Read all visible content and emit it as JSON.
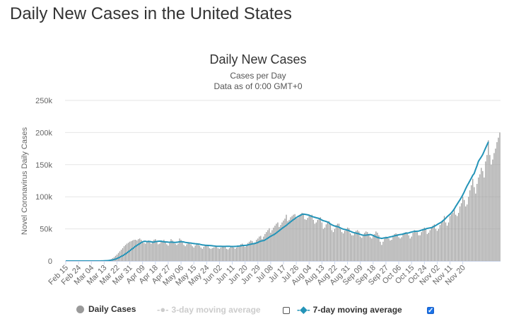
{
  "page": {
    "heading": "Daily New Cases in the United States"
  },
  "colors": {
    "bars": "#9a9a9a",
    "line": "#2494b8",
    "gridline": "#e6e6e6",
    "axis": "#ccd6eb"
  },
  "legend": {
    "daily": "Daily Cases",
    "avg3": "3-day moving average",
    "avg7": "7-day moving average",
    "avg3_checked": false,
    "avg7_checked": true
  },
  "chart_data": {
    "type": "bar",
    "title": "Daily New Cases",
    "subtitle": "Cases per Day",
    "subtitle2": "Data as of 0:00 GMT+0",
    "ylabel": "Novel Coronavirus Daily Cases",
    "xlabel": "",
    "ylim": [
      0,
      250000
    ],
    "yticks": [
      0,
      50000,
      100000,
      150000,
      200000,
      250000
    ],
    "ytick_labels": [
      "0",
      "50k",
      "100k",
      "150k",
      "200k",
      "250k"
    ],
    "x_start": "Feb 15",
    "x_end": "Nov 20",
    "xtick_labels": [
      "Feb 15",
      "Feb 24",
      "Mar 04",
      "Mar 13",
      "Mar 22",
      "Mar 31",
      "Apr 09",
      "Apr 18",
      "Apr 27",
      "May 06",
      "May 15",
      "May 24",
      "Jun 02",
      "Jun 11",
      "Jun 20",
      "Jun 29",
      "Jul 08",
      "Jul 17",
      "Jul 26",
      "Aug 04",
      "Aug 13",
      "Aug 22",
      "Aug 31",
      "Sep 09",
      "Sep 18",
      "Sep 27",
      "Oct 06",
      "Oct 15",
      "Oct 24",
      "Nov 02",
      "Nov 11",
      "Nov 20"
    ],
    "xtick_every": 9,
    "series": [
      {
        "name": "Daily Cases",
        "values": [
          0,
          0,
          0,
          0,
          0,
          0,
          0,
          0,
          0,
          0,
          0,
          0,
          0,
          0,
          0,
          0,
          0,
          0,
          0,
          0,
          0,
          0,
          0,
          0,
          100,
          150,
          300,
          500,
          700,
          1000,
          1500,
          2000,
          3000,
          4500,
          6000,
          8000,
          10000,
          12500,
          15000,
          17500,
          20000,
          23000,
          25000,
          27000,
          28500,
          30000,
          31000,
          32000,
          33000,
          33000,
          32000,
          34000,
          35000,
          33000,
          31000,
          28000,
          27000,
          30000,
          32000,
          29000,
          27000,
          31000,
          33000,
          34000,
          30000,
          26000,
          27000,
          30000,
          31000,
          33000,
          29000,
          26000,
          24000,
          28000,
          34000,
          32000,
          30000,
          27000,
          25000,
          27000,
          35000,
          33000,
          29000,
          25000,
          23000,
          26000,
          29000,
          28000,
          26000,
          23000,
          21000,
          24000,
          27000,
          26000,
          24000,
          21000,
          19000,
          22000,
          25000,
          24000,
          23000,
          20000,
          19000,
          20000,
          21000,
          22000,
          23000,
          20000,
          19000,
          21000,
          22000,
          23000,
          22000,
          19000,
          18000,
          20000,
          22000,
          23000,
          21000,
          19000,
          21000,
          23000,
          24000,
          26000,
          27000,
          25000,
          22000,
          24000,
          28000,
          30000,
          32000,
          31000,
          27000,
          29000,
          33000,
          35000,
          38000,
          39000,
          34000,
          38000,
          42000,
          45000,
          48000,
          51000,
          44000,
          48000,
          52000,
          55000,
          58000,
          60000,
          53000,
          56000,
          60000,
          63000,
          66000,
          72000,
          62000,
          64000,
          68000,
          70000,
          72000,
          73000,
          66000,
          67000,
          71000,
          73000,
          75000,
          74000,
          65000,
          64000,
          67000,
          70000,
          71000,
          72000,
          64000,
          58000,
          60000,
          64000,
          66000,
          68000,
          60000,
          50000,
          52000,
          57000,
          60000,
          62000,
          58000,
          48000,
          45000,
          50000,
          56000,
          58000,
          58000,
          50000,
          45000,
          43000,
          47000,
          50000,
          52000,
          51000,
          43000,
          40000,
          40000,
          45000,
          47000,
          48000,
          46000,
          38000,
          36000,
          39000,
          44000,
          46000,
          45000,
          42000,
          37000,
          35000,
          39000,
          42000,
          46000,
          44000,
          40000,
          30000,
          25000,
          30000,
          35000,
          38000,
          36000,
          35000,
          32000,
          33000,
          38000,
          42000,
          43000,
          42000,
          37000,
          35000,
          37000,
          42000,
          44000,
          45000,
          44000,
          40000,
          35000,
          38000,
          44000,
          48000,
          47000,
          45000,
          40000,
          40000,
          45000,
          50000,
          52000,
          49000,
          42000,
          44000,
          48000,
          53000,
          55000,
          57000,
          50000,
          47000,
          50000,
          56000,
          60000,
          64000,
          70000,
          60000,
          55000,
          60000,
          70000,
          73000,
          75000,
          80000,
          72000,
          70000,
          75000,
          85000,
          90000,
          100000,
          95000,
          85000,
          88000,
          100000,
          110000,
          118000,
          128000,
          115000,
          105000,
          120000,
          130000,
          135000,
          145000,
          140000,
          130000,
          155000,
          165000,
          188000,
          165000,
          150000,
          158000,
          168000,
          175000,
          185000,
          192000,
          200000
        ],
        "bar": true
      },
      {
        "name": "7-day moving average",
        "values": [
          0,
          0,
          0,
          0,
          0,
          0,
          0,
          0,
          0,
          0,
          0,
          0,
          0,
          0,
          0,
          0,
          0,
          0,
          0,
          0,
          0,
          0,
          0,
          0,
          60,
          100,
          170,
          280,
          400,
          540,
          740,
          990,
          1310,
          1740,
          2270,
          2940,
          3810,
          4830,
          5950,
          7110,
          8260,
          9560,
          11010,
          12580,
          14210,
          15960,
          17660,
          19340,
          21080,
          22810,
          24380,
          25580,
          27030,
          28590,
          29740,
          30610,
          30640,
          30210,
          30260,
          30430,
          29910,
          29260,
          29410,
          30140,
          30370,
          30670,
          30890,
          30820,
          30300,
          29890,
          29590,
          29580,
          29310,
          29200,
          29400,
          29230,
          28990,
          28880,
          29230,
          29450,
          29900,
          30070,
          29950,
          29550,
          28970,
          28600,
          28370,
          28090,
          27900,
          27470,
          27160,
          26870,
          26770,
          26410,
          26100,
          25560,
          25080,
          24800,
          24490,
          24430,
          24240,
          24080,
          23950,
          23690,
          23410,
          23190,
          22890,
          22860,
          22910,
          22870,
          22730,
          22720,
          22780,
          22810,
          22860,
          22910,
          22610,
          22530,
          22610,
          22760,
          22850,
          23070,
          23340,
          23730,
          24060,
          24290,
          24340,
          24540,
          25070,
          25530,
          26100,
          26610,
          26980,
          27310,
          27980,
          28870,
          29930,
          30900,
          31360,
          31660,
          32710,
          34090,
          35520,
          37040,
          38480,
          39670,
          40670,
          42110,
          43760,
          45470,
          47090,
          48980,
          50770,
          52400,
          53920,
          55430,
          57480,
          59130,
          61030,
          62680,
          64410,
          65930,
          67500,
          68940,
          70170,
          71330,
          72490,
          72920,
          72650,
          72310,
          71870,
          71290,
          70320,
          69280,
          68650,
          67990,
          67330,
          66740,
          66190,
          64960,
          63680,
          62700,
          62170,
          61510,
          60700,
          59480,
          57570,
          56280,
          55240,
          54400,
          53880,
          53450,
          52610,
          51470,
          50400,
          49600,
          49110,
          48560,
          47970,
          47220,
          46270,
          45240,
          44410,
          43870,
          43390,
          42810,
          42150,
          41320,
          40710,
          40150,
          40060,
          40210,
          40500,
          40940,
          41210,
          40570,
          39800,
          38600,
          37580,
          36740,
          36050,
          35590,
          35130,
          35590,
          36020,
          36090,
          36430,
          36940,
          37530,
          37930,
          38630,
          39200,
          39620,
          40110,
          40750,
          41210,
          41400,
          42010,
          42660,
          43200,
          43560,
          43650,
          44470,
          45060,
          45620,
          46140,
          46290,
          46380,
          46560,
          47250,
          48020,
          48670,
          49300,
          49980,
          50680,
          51150,
          51540,
          51940,
          53010,
          54140,
          55290,
          56750,
          58130,
          59250,
          60670,
          62470,
          64380,
          66520,
          68990,
          70860,
          72810,
          75070,
          77940,
          80960,
          84860,
          88340,
          91860,
          95190,
          98940,
          102980,
          107510,
          112440,
          116990,
          120880,
          124980,
          129010,
          133380,
          136170,
          142670,
          148410,
          155280,
          158610,
          162040,
          165720,
          170870,
          175860,
          180720,
          185450
        ]
      }
    ]
  }
}
